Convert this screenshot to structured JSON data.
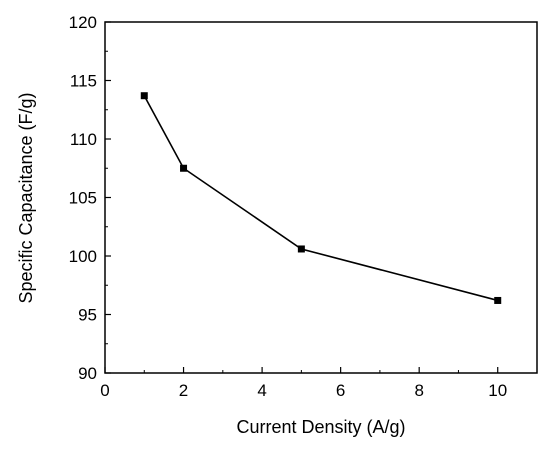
{
  "chart_data": {
    "type": "line",
    "title": "",
    "xlabel": "Current Density (A/g)",
    "ylabel": "Specific Capacitance (F/g)",
    "xlim": [
      0,
      11
    ],
    "ylim": [
      90,
      120
    ],
    "xticks": [
      0,
      2,
      4,
      6,
      8,
      10
    ],
    "yticks": [
      90,
      95,
      100,
      105,
      110,
      115,
      120
    ],
    "grid": false,
    "legend": "none",
    "series": [
      {
        "x": [
          1,
          2,
          5,
          10
        ],
        "y": [
          113.7,
          107.5,
          100.6,
          96.2
        ],
        "marker": "square",
        "color": "#000000"
      }
    ]
  }
}
